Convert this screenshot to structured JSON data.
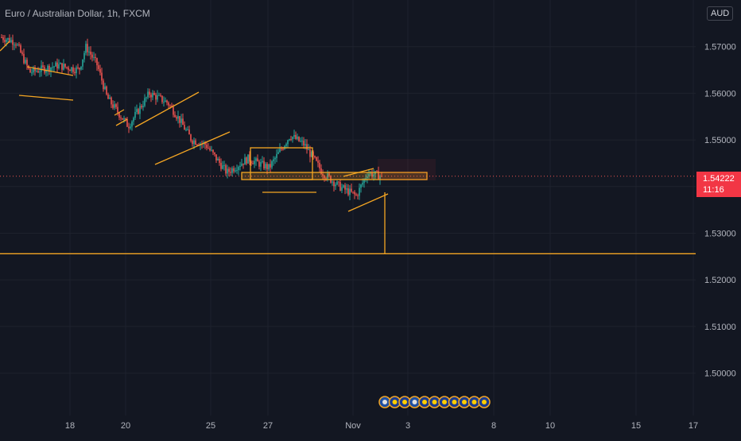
{
  "header": {
    "title": "Euro / Australian Dollar, 1h, FXCM",
    "currency": "AUD"
  },
  "price_tag": {
    "price": "1.54222",
    "countdown": "11:16",
    "color": "#f23645"
  },
  "colors": {
    "background": "#131722",
    "grid": "#1e222d",
    "up": "#26a69a",
    "down": "#ef5350",
    "drawing": "#f5a623",
    "axis_text": "#b2b5be"
  },
  "chart_data": {
    "type": "candlestick",
    "symbol": "EURAUD",
    "timeframe": "1h",
    "y_axis_labels": [
      "1.57000",
      "1.56000",
      "1.55000",
      "1.54000",
      "1.53000",
      "1.52000",
      "1.51000",
      "1.50000"
    ],
    "x_axis_labels": [
      "18",
      "20",
      "25",
      "27",
      "Nov",
      "3",
      "8",
      "10",
      "15",
      "17"
    ],
    "ylim": [
      1.4909,
      1.58
    ],
    "grid": true,
    "current_price": 1.54222,
    "horizontal_level": 1.5256,
    "candle_count": 240,
    "price_path": [
      [
        0,
        1.572
      ],
      [
        10,
        1.571
      ],
      [
        20,
        1.5645
      ],
      [
        40,
        1.566
      ],
      [
        55,
        1.565
      ],
      [
        60,
        1.57
      ],
      [
        68,
        1.566
      ],
      [
        75,
        1.559
      ],
      [
        90,
        1.553
      ],
      [
        105,
        1.56
      ],
      [
        118,
        1.558
      ],
      [
        125,
        1.555
      ],
      [
        135,
        1.55
      ],
      [
        145,
        1.549
      ],
      [
        160,
        1.543
      ],
      [
        175,
        1.546
      ],
      [
        190,
        1.544
      ],
      [
        205,
        1.551
      ],
      [
        215,
        1.549
      ],
      [
        228,
        1.543
      ],
      [
        240,
        1.54
      ],
      [
        252,
        1.538
      ],
      [
        260,
        1.543
      ],
      [
        270,
        1.5422
      ]
    ]
  },
  "event_markers": [
    "AU",
    "EU",
    "EU",
    "AU",
    "EU",
    "EU",
    "EU",
    "EU",
    "EU",
    "EU",
    "EU"
  ]
}
